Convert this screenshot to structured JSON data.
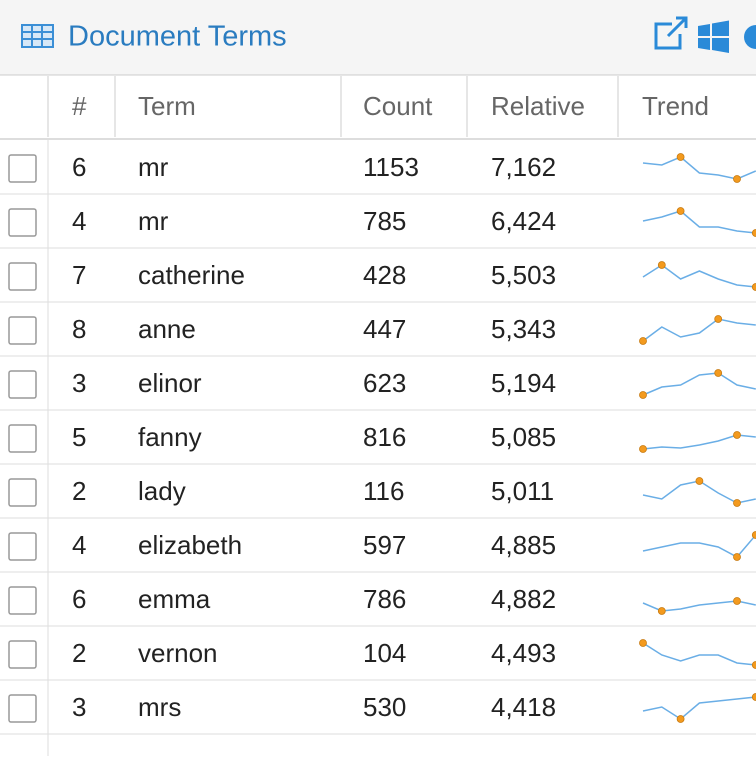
{
  "header": {
    "title": "Document Terms"
  },
  "table": {
    "columns": [
      "#",
      "Term",
      "Count",
      "Relative",
      "Trend"
    ],
    "rows": [
      {
        "num": 6,
        "term": "mr",
        "count": 1153,
        "relative": "7,162",
        "trend": [
          8,
          7,
          11,
          3,
          2,
          0,
          4
        ]
      },
      {
        "num": 4,
        "term": "mr",
        "count": 785,
        "relative": "6,424",
        "trend": [
          6,
          8,
          11,
          3,
          3,
          1,
          0
        ]
      },
      {
        "num": 7,
        "term": "catherine",
        "count": 428,
        "relative": "5,503",
        "trend": [
          5,
          11,
          4,
          8,
          4,
          1,
          0
        ]
      },
      {
        "num": 8,
        "term": "anne",
        "count": 447,
        "relative": "5,343",
        "trend": [
          0,
          7,
          2,
          4,
          11,
          9,
          8
        ]
      },
      {
        "num": 3,
        "term": "elinor",
        "count": 623,
        "relative": "5,194",
        "trend": [
          0,
          4,
          5,
          10,
          11,
          5,
          3
        ]
      },
      {
        "num": 5,
        "term": "fanny",
        "count": 816,
        "relative": "5,085",
        "trend": [
          0,
          1,
          0.5,
          2,
          4,
          7,
          6
        ]
      },
      {
        "num": 2,
        "term": "lady",
        "count": 116,
        "relative": "5,011",
        "trend": [
          4,
          2,
          9,
          11,
          5,
          0,
          2
        ]
      },
      {
        "num": 4,
        "term": "elizabeth",
        "count": 597,
        "relative": "4,885",
        "trend": [
          3,
          5,
          7,
          7,
          5,
          0,
          11
        ]
      },
      {
        "num": 6,
        "term": "emma",
        "count": 786,
        "relative": "4,882",
        "trend": [
          4,
          0,
          1,
          3,
          4,
          5,
          3
        ]
      },
      {
        "num": 2,
        "term": "vernon",
        "count": 104,
        "relative": "4,493",
        "trend": [
          11,
          5,
          2,
          5,
          5,
          1,
          0
        ]
      },
      {
        "num": 3,
        "term": "mrs",
        "count": 530,
        "relative": "4,418",
        "trend": [
          4,
          6,
          0,
          8,
          9,
          10,
          11
        ]
      }
    ]
  }
}
